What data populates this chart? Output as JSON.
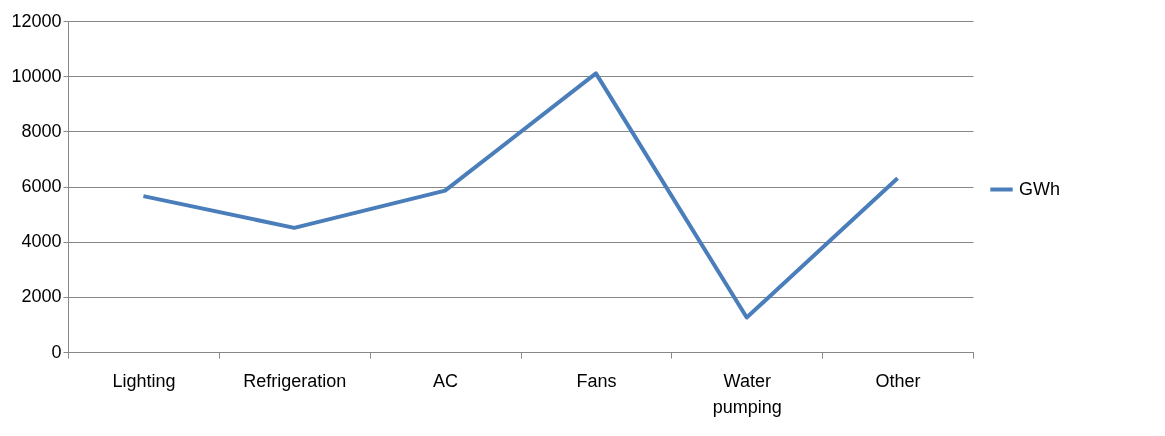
{
  "chart_data": {
    "type": "line",
    "categories": [
      "Lighting",
      "Refrigeration",
      "AC",
      "Fans",
      "Water pumping",
      "Other"
    ],
    "series": [
      {
        "name": "GWh",
        "color": "#4a7ebb",
        "values": [
          5650,
          4500,
          5850,
          10100,
          1250,
          6300
        ]
      }
    ],
    "ylim": [
      0,
      12000
    ],
    "yticks": [
      0,
      2000,
      4000,
      6000,
      8000,
      10000,
      12000
    ],
    "grid": "y",
    "legend": "right",
    "marker": "none",
    "line_style": "solid"
  }
}
